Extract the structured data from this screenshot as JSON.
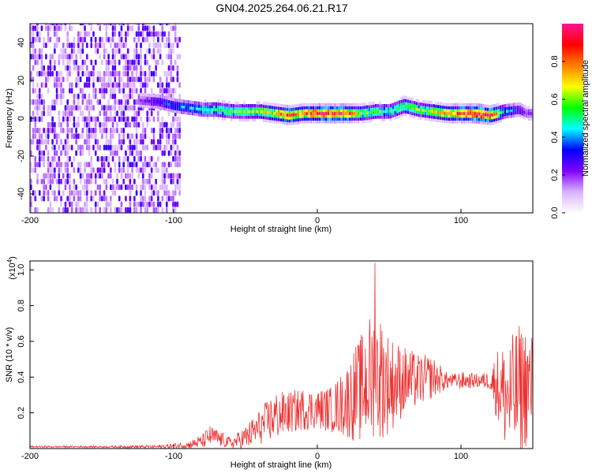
{
  "title": "GN04.2025.264.06.21.R17",
  "chart_data": [
    {
      "type": "heatmap",
      "xlabel": "Height of straight line (km)",
      "ylabel": "Frequency (Hz)",
      "xlim": [
        -200,
        150
      ],
      "ylim": [
        -50,
        50
      ],
      "x_ticks": [
        -200,
        -100,
        0,
        100
      ],
      "y_ticks": [
        -40,
        -20,
        0,
        20,
        40
      ],
      "colorbar": {
        "label": "Normalized spectral amplitude",
        "range": [
          0,
          1
        ],
        "ticks": [
          "0.0",
          "0.2",
          "0.4",
          "0.6",
          "0.8"
        ],
        "colors": [
          "#ffffff",
          "#d9b3ff",
          "#7f00ff",
          "#0000ff",
          "#00ffff",
          "#00ff00",
          "#ffff00",
          "#ff7f00",
          "#ff0000",
          "#ff1493"
        ]
      },
      "ridge": {
        "x": [
          -125,
          -110,
          -100,
          -90,
          -80,
          -70,
          -60,
          -50,
          -40,
          -30,
          -20,
          -10,
          0,
          10,
          20,
          30,
          40,
          50,
          60,
          70,
          80,
          90,
          100,
          110,
          120,
          130,
          140,
          145
        ],
        "freq": [
          9,
          8,
          6,
          5,
          4,
          4,
          3,
          3,
          3,
          2,
          1,
          2,
          2,
          2,
          2,
          2,
          3,
          3,
          6,
          4,
          3,
          2,
          2,
          2,
          1,
          3,
          4,
          2
        ],
        "amplitude": [
          0.2,
          0.3,
          0.35,
          0.4,
          0.45,
          0.5,
          0.55,
          0.55,
          0.6,
          0.7,
          0.85,
          0.75,
          0.9,
          0.9,
          0.85,
          0.6,
          0.55,
          0.5,
          0.6,
          0.55,
          0.65,
          0.75,
          0.85,
          0.95,
          0.9,
          0.4,
          0.3,
          0.2
        ]
      },
      "noise_region_x": [
        -200,
        -95
      ]
    },
    {
      "type": "line",
      "xlabel": "Height of straight line (km)",
      "ylabel": "SNR (10 * v/v)",
      "scale_label": "(x10",
      "scale_exponent": "4",
      "scale_suffix": ")",
      "xlim": [
        -200,
        150
      ],
      "ylim": [
        0,
        1.05
      ],
      "x_ticks": [
        -200,
        -100,
        0,
        100
      ],
      "y_ticks": [
        0.2,
        0.4,
        0.6,
        0.8,
        1.0
      ],
      "y_tick_labels": [
        "0.2",
        "0.4",
        "0.6",
        "0.8",
        "1.0"
      ],
      "series": [
        {
          "color": "#ee3333",
          "envelope_x": [
            -200,
            -150,
            -110,
            -90,
            -80,
            -75,
            -70,
            -60,
            -50,
            -40,
            -30,
            -20,
            -10,
            0,
            10,
            20,
            25,
            30,
            35,
            40,
            45,
            50,
            60,
            70,
            80,
            90,
            95,
            100,
            110,
            120,
            125,
            130,
            135,
            140,
            145,
            150
          ],
          "envelope_mean": [
            0.01,
            0.01,
            0.01,
            0.02,
            0.04,
            0.07,
            0.06,
            0.03,
            0.06,
            0.12,
            0.18,
            0.2,
            0.22,
            0.22,
            0.22,
            0.26,
            0.3,
            0.33,
            0.38,
            0.4,
            0.4,
            0.36,
            0.38,
            0.38,
            0.4,
            0.38,
            0.38,
            0.38,
            0.38,
            0.38,
            0.36,
            0.3,
            0.28,
            0.32,
            0.35,
            0.34
          ],
          "envelope_amp": [
            0.005,
            0.005,
            0.01,
            0.02,
            0.04,
            0.06,
            0.05,
            0.03,
            0.07,
            0.1,
            0.14,
            0.12,
            0.12,
            0.11,
            0.13,
            0.2,
            0.26,
            0.3,
            0.35,
            0.4,
            0.35,
            0.28,
            0.2,
            0.15,
            0.12,
            0.05,
            0.04,
            0.05,
            0.04,
            0.05,
            0.2,
            0.3,
            0.35,
            0.38,
            0.35,
            0.3
          ],
          "peak": {
            "x": 40,
            "y": 1.04
          }
        }
      ]
    }
  ]
}
